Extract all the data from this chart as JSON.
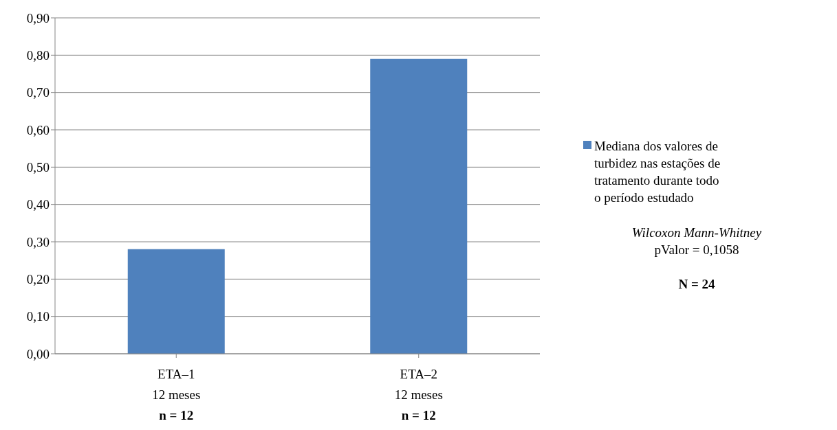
{
  "chart_data": {
    "type": "bar",
    "categories": [
      "ETA–1\n12 meses\nn = 12",
      "ETA–2\n12 meses\nn = 12"
    ],
    "series": [
      {
        "name": "Mediana dos valores de turbidez nas estações de tratamento durante todo o período estudado",
        "color": "#4f81bd",
        "values": [
          0.28,
          0.79
        ]
      }
    ],
    "ylim": [
      0,
      0.9
    ],
    "yticks": [
      {
        "value": 0,
        "label": "0,00"
      },
      {
        "value": 0.1,
        "label": "0,10"
      },
      {
        "value": 0.2,
        "label": "0,20"
      },
      {
        "value": 0.3,
        "label": "0,30"
      },
      {
        "value": 0.4,
        "label": "0,40"
      },
      {
        "value": 0.5,
        "label": "0,50"
      },
      {
        "value": 0.6,
        "label": "0,60"
      },
      {
        "value": 0.7,
        "label": "0,70"
      },
      {
        "value": 0.8,
        "label": "0,80"
      },
      {
        "value": 0.9,
        "label": "0,90"
      }
    ],
    "grid": "y",
    "legend": "right",
    "annotations": [
      "Wilcoxon Mann-Whitney",
      "pValor = 0,1058",
      "N = 24"
    ]
  }
}
